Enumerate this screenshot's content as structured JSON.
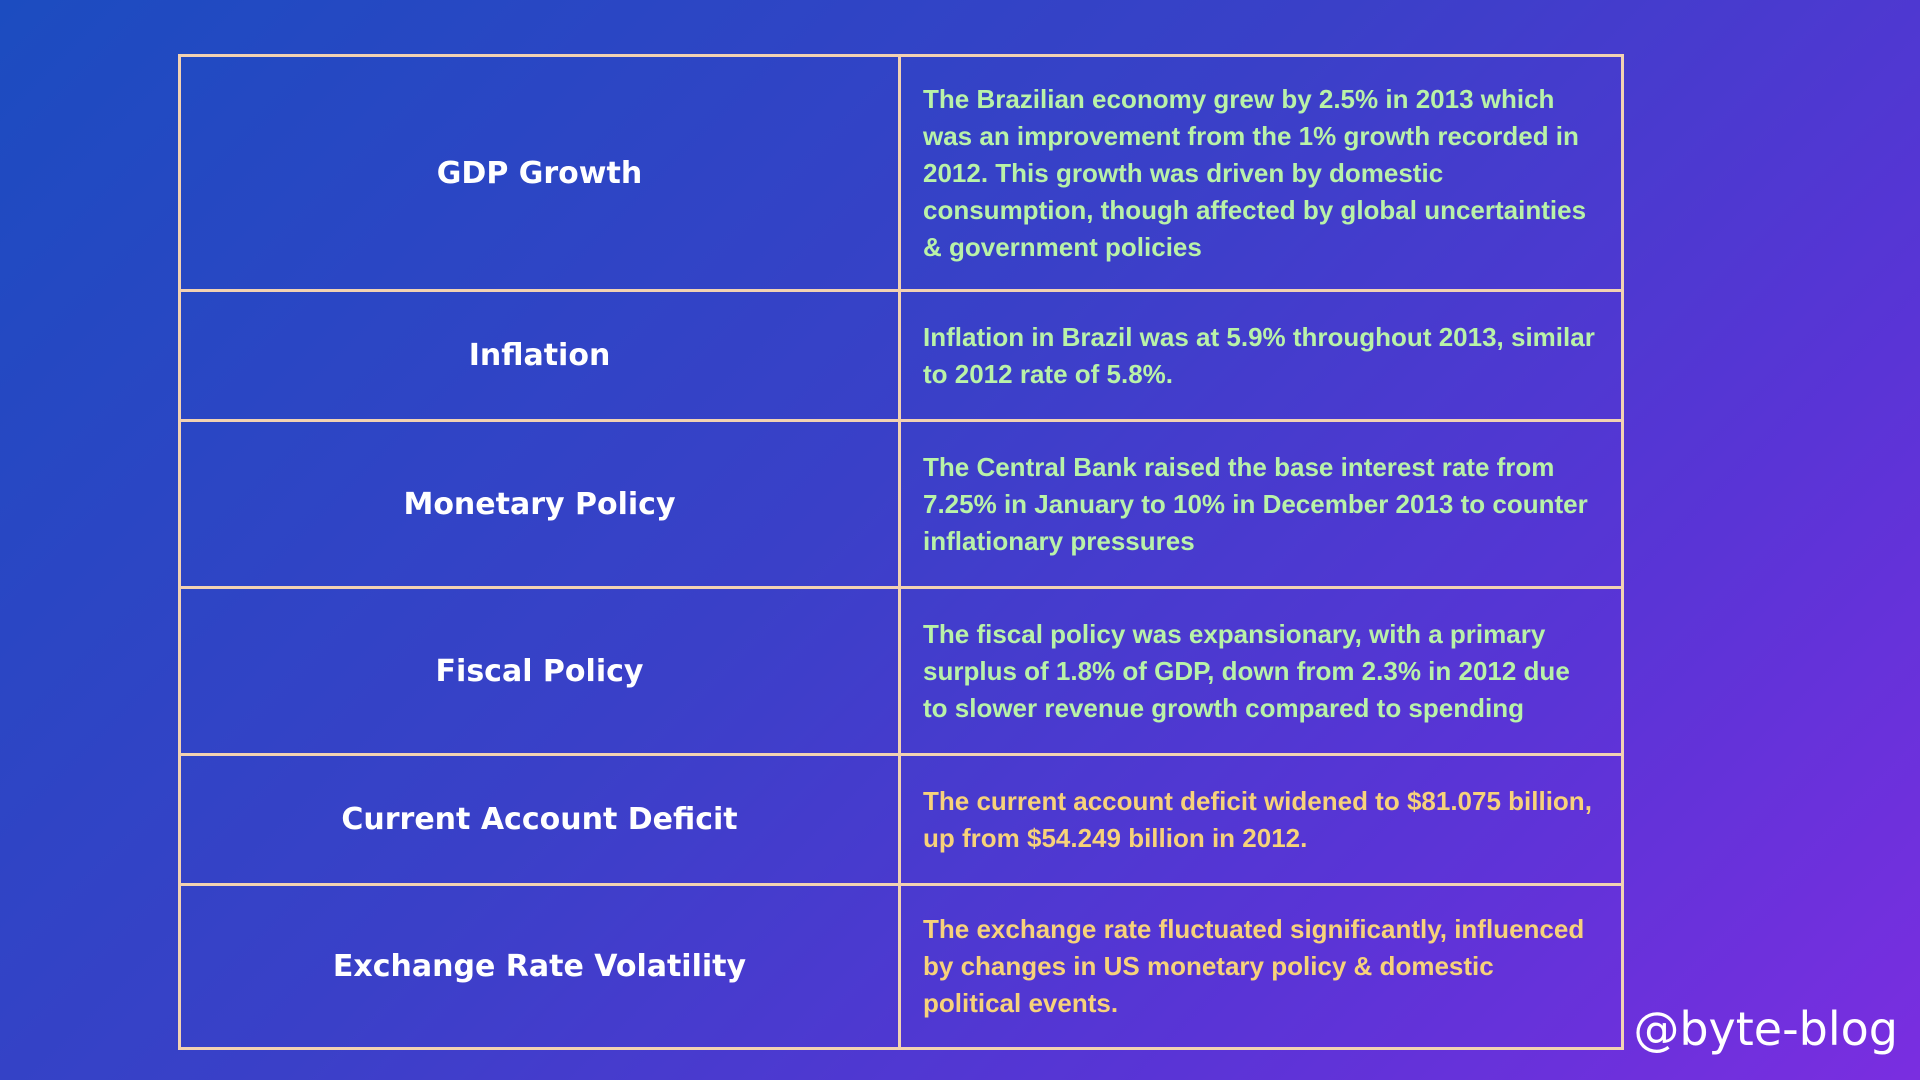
{
  "colors": {
    "border": "#f2d2b2",
    "label_text": "#ffffff",
    "desc_green": "#b9f2a8",
    "desc_yellow": "#f7d27a",
    "background_start": "#1c4cc0",
    "background_end": "#7a2ee0"
  },
  "table": {
    "rows": [
      {
        "label": "GDP Growth",
        "description": "The Brazilian economy grew by 2.5% in 2013 which was an improvement from the 1% growth recorded in 2012. This growth was driven by domestic consumption, though affected by global uncertainties & government policies"
      },
      {
        "label": "Inflation",
        "description": "Inflation in Brazil was at 5.9% throughout 2013, similar to 2012 rate of 5.8%."
      },
      {
        "label": "Monetary Policy",
        "description": "The Central Bank raised the base interest rate from 7.25% in January to 10% in December 2013 to counter inflationary pressures"
      },
      {
        "label": "Fiscal Policy",
        "description": "The fiscal policy was expansionary, with a primary surplus of 1.8% of GDP, down from 2.3% in 2012 due to slower revenue growth compared to spending"
      },
      {
        "label": "Current Account Deficit",
        "description": "The current account deficit widened to $81.075 billion, up from $54.249 billion in 2012."
      },
      {
        "label": "Exchange Rate Volatility",
        "description": "The exchange rate fluctuated significantly, influenced by changes in US monetary policy & domestic political events."
      }
    ]
  },
  "watermark": "@byte-blog"
}
